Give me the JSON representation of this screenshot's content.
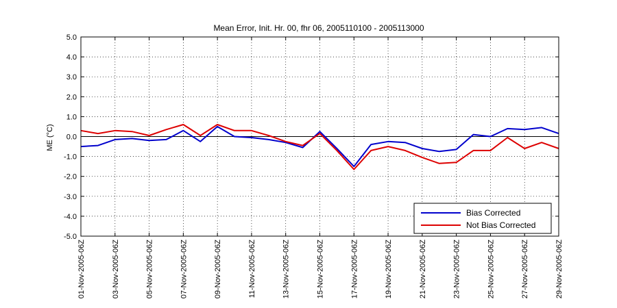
{
  "chart_data": {
    "type": "line",
    "title": "Mean Error, Init. Hr. 00, fhr 06, 2005110100 - 2005113000",
    "ylabel": "ME (°C)",
    "xlabel": "",
    "ylim": [
      -5,
      5
    ],
    "yticks": [
      "5.0",
      "4.0",
      "3.0",
      "2.0",
      "1.0",
      "0.0",
      "-1.0",
      "-2.0",
      "-3.0",
      "-4.0",
      "-5.0"
    ],
    "x": [
      "01-Nov-2005",
      "02-Nov-2005",
      "03-Nov-2005",
      "04-Nov-2005",
      "05-Nov-2005",
      "06-Nov-2005",
      "07-Nov-2005",
      "08-Nov-2005",
      "09-Nov-2005",
      "10-Nov-2005",
      "11-Nov-2005",
      "12-Nov-2005",
      "13-Nov-2005",
      "14-Nov-2005",
      "15-Nov-2005",
      "16-Nov-2005",
      "17-Nov-2005",
      "18-Nov-2005",
      "19-Nov-2005",
      "20-Nov-2005",
      "21-Nov-2005",
      "22-Nov-2005",
      "23-Nov-2005",
      "24-Nov-2005",
      "25-Nov-2005",
      "26-Nov-2005",
      "27-Nov-2005",
      "28-Nov-2005",
      "29-Nov-2005"
    ],
    "xticks": [
      "01-Nov-2005-06Z",
      "03-Nov-2005-06Z",
      "05-Nov-2005-06Z",
      "07-Nov-2005-06Z",
      "09-Nov-2005-06Z",
      "11-Nov-2005-06Z",
      "13-Nov-2005-06Z",
      "15-Nov-2005-06Z",
      "17-Nov-2005-06Z",
      "19-Nov-2005-06Z",
      "21-Nov-2005-06Z",
      "23-Nov-2005-06Z",
      "25-Nov-2005-06Z",
      "27-Nov-2005-06Z",
      "29-Nov-2005-06Z"
    ],
    "series": [
      {
        "name": "Bias Corrected",
        "color": "#0000cc",
        "values": [
          -0.5,
          -0.45,
          -0.15,
          -0.1,
          -0.2,
          -0.15,
          0.3,
          -0.25,
          0.5,
          0.0,
          -0.05,
          -0.15,
          -0.3,
          -0.55,
          0.25,
          -0.6,
          -1.5,
          -0.4,
          -0.25,
          -0.3,
          -0.6,
          -0.75,
          -0.65,
          0.1,
          0.0,
          0.4,
          0.35,
          0.45,
          0.15
        ]
      },
      {
        "name": "Not Bias Corrected",
        "color": "#dd0000",
        "values": [
          0.3,
          0.15,
          0.3,
          0.25,
          0.05,
          0.35,
          0.6,
          0.05,
          0.6,
          0.3,
          0.3,
          0.05,
          -0.25,
          -0.45,
          0.15,
          -0.7,
          -1.65,
          -0.7,
          -0.5,
          -0.7,
          -1.05,
          -1.35,
          -1.3,
          -0.7,
          -0.7,
          -0.05,
          -0.6,
          -0.3,
          -0.6
        ]
      }
    ],
    "zero_line": 0,
    "grid": true,
    "legend_position": "bottom-right"
  }
}
